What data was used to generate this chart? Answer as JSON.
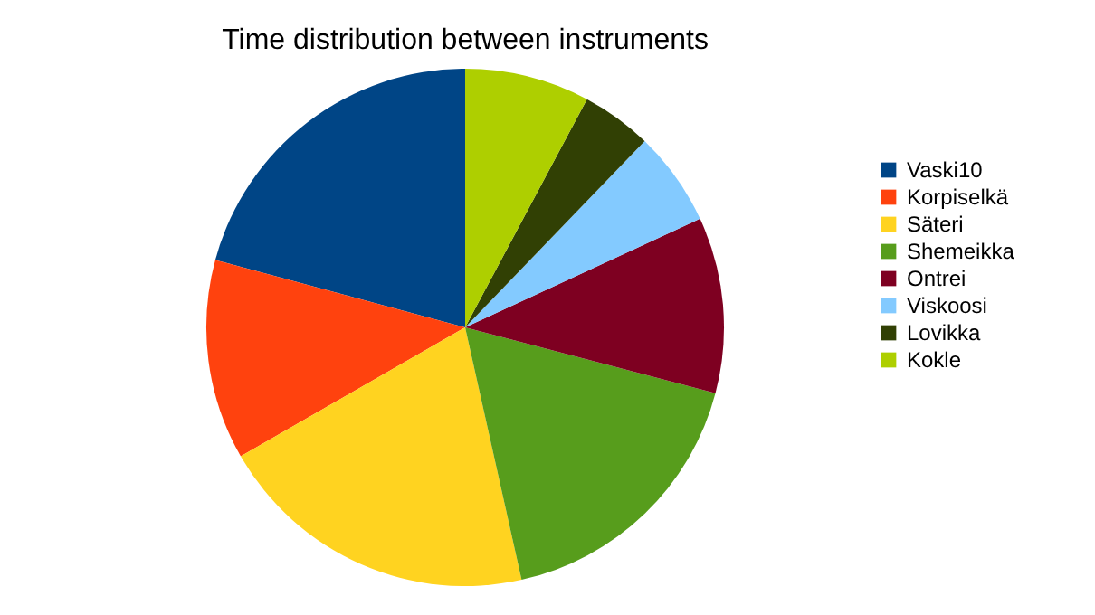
{
  "chart_data": {
    "type": "pie",
    "title": "Time distribution between instruments",
    "categories": [
      "Vaski10",
      "Korpiselkä",
      "Säteri",
      "Shemeikka",
      "Ontrei",
      "Viskoosi",
      "Lovikka",
      "Kokle"
    ],
    "values": [
      20.8,
      12.5,
      20.2,
      17.4,
      11.0,
      5.9,
      4.4,
      7.8
    ],
    "colors": [
      "#004586",
      "#ff420e",
      "#ffd320",
      "#579d1c",
      "#7e0021",
      "#83caff",
      "#314004",
      "#aecf00"
    ],
    "legend": "right"
  }
}
